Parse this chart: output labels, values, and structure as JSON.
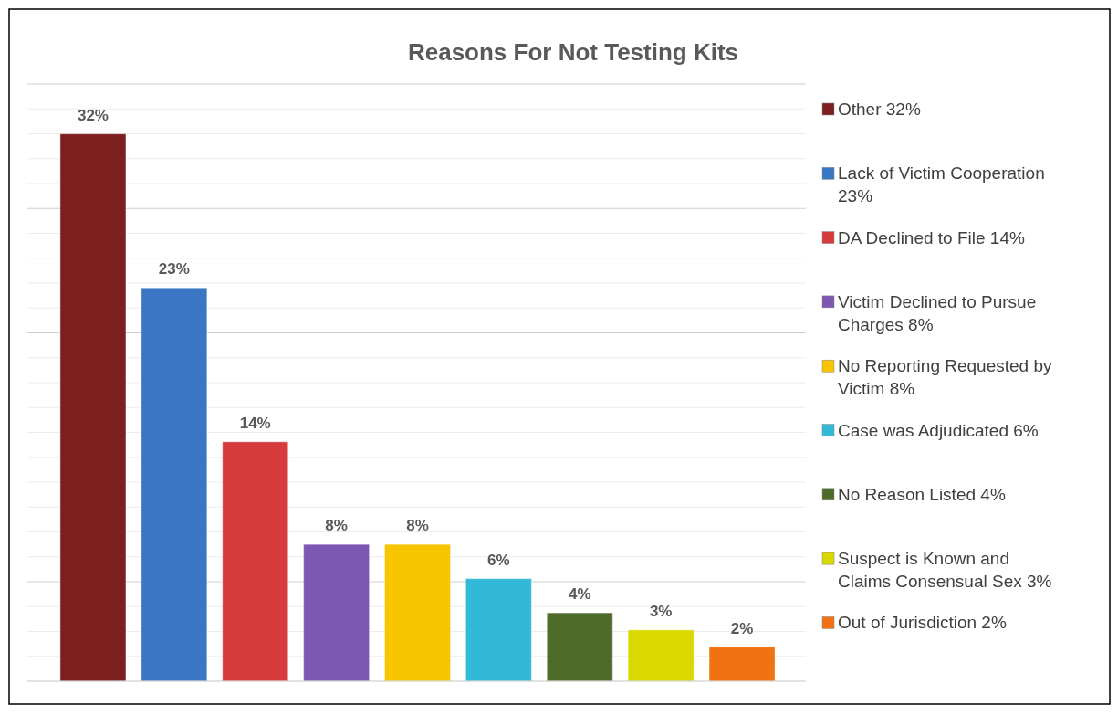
{
  "chart_data": {
    "type": "bar",
    "title": "Reasons For Not Testing Kits",
    "categories": [
      null,
      null,
      null,
      null,
      null,
      null,
      null,
      null,
      null
    ],
    "stacked": true,
    "series": [
      {
        "name": "Other 32%",
        "color": "#7b1f1f",
        "values": [
          32,
          null,
          null,
          null,
          null,
          null,
          null,
          null,
          null
        ],
        "value_labels": [
          "32%",
          null,
          null,
          null,
          null,
          null,
          null,
          null,
          null
        ]
      },
      {
        "name": "Lack of Victim Cooperation 23%",
        "color": "#3b76c4",
        "values": [
          null,
          23,
          null,
          null,
          null,
          null,
          null,
          null,
          null
        ],
        "value_labels": [
          null,
          "23%",
          null,
          null,
          null,
          null,
          null,
          null,
          null
        ]
      },
      {
        "name": "DA Declined to File 14%",
        "color": "#d63c3c",
        "values": [
          null,
          null,
          14,
          null,
          null,
          null,
          null,
          null,
          null
        ],
        "value_labels": [
          null,
          null,
          "14%",
          null,
          null,
          null,
          null,
          null,
          null
        ]
      },
      {
        "name": "Victim Declined to Pursue Charges 8%",
        "color": "#7e57b2",
        "values": [
          null,
          null,
          null,
          8,
          null,
          null,
          null,
          null,
          null
        ],
        "value_labels": [
          null,
          null,
          null,
          "8%",
          null,
          null,
          null,
          null,
          null
        ]
      },
      {
        "name": "No Reporting Requested by Victim 8%",
        "color": "#f9c400",
        "values": [
          null,
          null,
          null,
          null,
          8,
          null,
          null,
          null,
          null
        ],
        "value_labels": [
          null,
          null,
          null,
          null,
          "8%",
          null,
          null,
          null,
          null
        ]
      },
      {
        "name": "Case was Adjudicated 6%",
        "color": "#33b9d8",
        "values": [
          null,
          null,
          null,
          null,
          null,
          6,
          null,
          null,
          null
        ],
        "value_labels": [
          null,
          null,
          null,
          null,
          null,
          "6%",
          null,
          null,
          null
        ]
      },
      {
        "name": "No Reason Listed 4%",
        "color": "#4f6b2a",
        "values": [
          null,
          null,
          null,
          null,
          null,
          null,
          4,
          null,
          null
        ],
        "value_labels": [
          null,
          null,
          null,
          null,
          null,
          null,
          "4%",
          null,
          null
        ]
      },
      {
        "name": "Suspect is Known and Claims Consensual Sex 3%",
        "color": "#d9d800",
        "values": [
          null,
          null,
          null,
          null,
          null,
          null,
          null,
          3,
          null
        ],
        "value_labels": [
          null,
          null,
          null,
          null,
          null,
          null,
          null,
          "3%",
          null
        ]
      },
      {
        "name": "Out of Jurisdiction 2%",
        "color": "#f07212",
        "values": [
          null,
          null,
          null,
          null,
          null,
          null,
          null,
          null,
          2
        ],
        "value_labels": [
          null,
          null,
          null,
          null,
          null,
          null,
          null,
          null,
          "2%"
        ]
      }
    ],
    "ylim": [
      0,
      34.92
    ],
    "yticks": [
      {
        "value": 0,
        "label": null
      },
      {
        "value": 1.455,
        "label": null
      },
      {
        "value": 2.91,
        "label": null
      },
      {
        "value": 4.365,
        "label": null
      },
      {
        "value": 5.82,
        "label": null
      },
      {
        "value": 7.275,
        "label": null
      },
      {
        "value": 8.73,
        "label": null
      },
      {
        "value": 10.185,
        "label": null
      },
      {
        "value": 11.64,
        "label": null
      },
      {
        "value": 13.095,
        "label": null
      },
      {
        "value": 14.55,
        "label": null
      },
      {
        "value": 16.005,
        "label": null
      },
      {
        "value": 17.46,
        "label": null
      },
      {
        "value": 18.915,
        "label": null
      },
      {
        "value": 20.37,
        "label": null
      },
      {
        "value": 21.825,
        "label": null
      },
      {
        "value": 23.28,
        "label": null
      },
      {
        "value": 24.735,
        "label": null
      },
      {
        "value": 26.19,
        "label": null
      },
      {
        "value": 27.645,
        "label": null
      },
      {
        "value": 29.1,
        "label": null
      },
      {
        "value": 30.555,
        "label": null
      },
      {
        "value": 32.01,
        "label": null
      },
      {
        "value": 33.465,
        "label": null
      },
      {
        "value": 34.92,
        "label": null
      }
    ],
    "grid": "y",
    "legend": "right"
  }
}
